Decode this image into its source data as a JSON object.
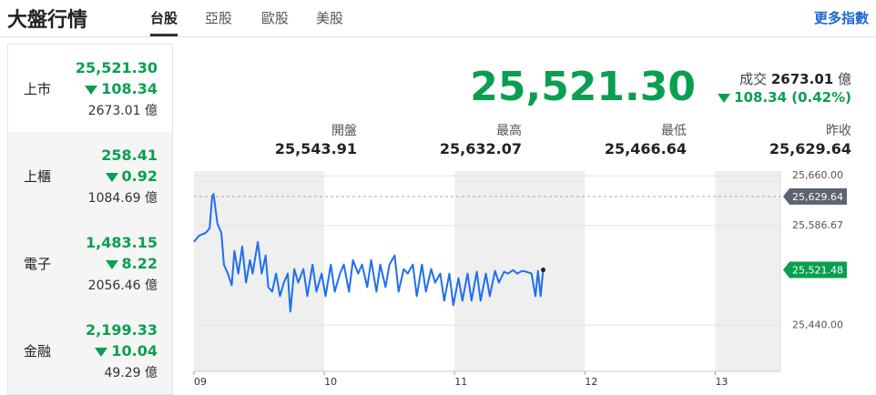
{
  "header": {
    "title": "大盤行情",
    "tabs": [
      "台股",
      "亞股",
      "歐股",
      "美股"
    ],
    "link": "更多指數"
  },
  "markets": [
    {
      "name": "上市",
      "price": "25,521.30",
      "change": "108.34",
      "volume": "2673.01 億"
    },
    {
      "name": "上櫃",
      "price": "258.41",
      "change": "0.92",
      "volume": "1084.69 億"
    },
    {
      "name": "電子",
      "price": "1,483.15",
      "change": "8.22",
      "volume": "2056.46 億"
    },
    {
      "name": "金融",
      "price": "2,199.33",
      "change": "10.04",
      "volume": "49.29 億"
    }
  ],
  "quote": {
    "price": "25,521.30",
    "volume_label": "成交",
    "volume": "2673.01",
    "volume_unit": "億",
    "change": "108.34 (0.42%)"
  },
  "stats": [
    {
      "label": "開盤",
      "value": "25,543.91"
    },
    {
      "label": "最高",
      "value": "25,632.07"
    },
    {
      "label": "最低",
      "value": "25,466.64"
    },
    {
      "label": "昨收",
      "value": "25,629.64"
    }
  ],
  "chart_data": {
    "type": "line",
    "color": "#1f6ff0",
    "x": [
      9.0,
      9.04,
      9.09,
      9.12,
      9.14,
      9.15,
      9.18,
      9.21,
      9.23,
      9.26,
      9.29,
      9.31,
      9.34,
      9.37,
      9.4,
      9.43,
      9.45,
      9.49,
      9.52,
      9.55,
      9.57,
      9.6,
      9.63,
      9.66,
      9.69,
      9.72,
      9.74,
      9.77,
      9.8,
      9.84,
      9.87,
      9.91,
      9.94,
      9.98,
      10.01,
      10.05,
      10.08,
      10.12,
      10.15,
      10.19,
      10.22,
      10.26,
      10.29,
      10.33,
      10.36,
      10.4,
      10.43,
      10.47,
      10.5,
      10.54,
      10.57,
      10.61,
      10.64,
      10.68,
      10.71,
      10.75,
      10.78,
      10.82,
      10.85,
      10.89,
      10.92,
      10.96,
      10.99,
      11.03,
      11.06,
      11.1,
      11.13,
      11.17,
      11.2,
      11.24,
      11.27,
      11.31,
      11.34,
      11.38,
      11.41,
      11.45,
      11.48,
      11.52,
      11.55,
      11.59,
      11.62,
      11.64,
      11.66,
      11.68
    ],
    "values": [
      25562.7,
      25572,
      25576,
      25582.7,
      25629.3,
      25633.3,
      25589.3,
      25576,
      25529.3,
      25516,
      25498.7,
      25549.3,
      25516,
      25556,
      25502.7,
      25536,
      25516,
      25562.7,
      25516,
      25542.7,
      25496,
      25489.3,
      25516,
      25482.7,
      25502.7,
      25516,
      25460,
      25522.7,
      25502.7,
      25522.7,
      25482.7,
      25529.3,
      25489.3,
      25516,
      25482.7,
      25529.3,
      25489.3,
      25516,
      25529.3,
      25489.3,
      25536,
      25516,
      25529.3,
      25496,
      25536,
      25489.3,
      25529.3,
      25496,
      25529.3,
      25542.7,
      25489.3,
      25522.7,
      25516,
      25529.3,
      25482.7,
      25529.3,
      25489.3,
      25522.7,
      25502.7,
      25516,
      25476,
      25516,
      25469.3,
      25509.3,
      25476,
      25516,
      25476,
      25518.7,
      25476,
      25516,
      25482.7,
      25520,
      25502.7,
      25518.7,
      25516,
      25521.3,
      25516,
      25520,
      25518.7,
      25516,
      25482.7,
      25520,
      25482.7,
      25521.48
    ],
    "xlim": [
      9,
      13.5
    ],
    "xticks": [
      {
        "value": 9,
        "label": "09"
      },
      10,
      11,
      12,
      13
    ],
    "ylim": [
      25372,
      25667
    ],
    "yticks": [
      {
        "value": 25440,
        "label": "25,440.00"
      },
      {
        "value": 25586.67,
        "label": "25,586.67"
      },
      {
        "value": 25660,
        "label": "25,660.00"
      }
    ],
    "reference_line": {
      "value": 25629.64,
      "label": "25,629.64"
    },
    "last_price": {
      "value": 25521.48,
      "label": "25,521.48"
    },
    "grid": true
  }
}
